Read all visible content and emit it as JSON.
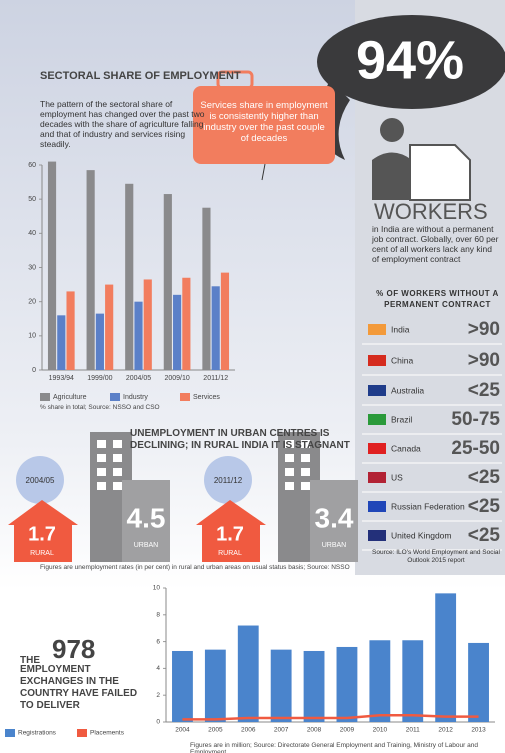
{
  "chart_data": [
    {
      "type": "bar",
      "title": "SECTORAL SHARE OF EMPLOYMENT",
      "description": "The pattern of the sectoral share of employment has changed over the past two decades with the share of agriculture falling and that of industry and services rising steadily.",
      "callout": "Services share in employment is consistently higher than industry over the past couple of decades",
      "categories": [
        "1993/94",
        "1999/00",
        "2004/05",
        "2009/10",
        "2011/12"
      ],
      "series": [
        {
          "name": "Agriculture",
          "type": "bar",
          "color": "#8a8a8c",
          "values": [
            61,
            58.5,
            54.5,
            51.5,
            47.5
          ]
        },
        {
          "name": "Industry",
          "type": "bar",
          "color": "#5b80c8",
          "values": [
            16,
            16.5,
            20,
            22,
            24.5
          ]
        },
        {
          "name": "Services",
          "type": "bar",
          "color": "#f27d5e",
          "values": [
            23,
            25,
            26.5,
            27,
            28.5
          ]
        }
      ],
      "ylim": [
        0,
        60
      ],
      "yticks": [
        0,
        10,
        20,
        30,
        40,
        50,
        60
      ],
      "grid": false,
      "legend": "bottom",
      "note": "% share in total; Source: NSSO and CSO"
    },
    {
      "type": "bar",
      "title_number": "978",
      "title_prefix": "THE",
      "title": "EMPLOYMENT EXCHANGES IN THE COUNTRY HAVE FAILED TO DELIVER",
      "categories": [
        "2004",
        "2005",
        "2006",
        "2007",
        "2008",
        "2009",
        "2010",
        "2011",
        "2012",
        "2013"
      ],
      "series": [
        {
          "name": "Registrations",
          "type": "bar",
          "color": "#4a84cc",
          "values": [
            5.3,
            5.4,
            7.2,
            5.4,
            5.3,
            5.6,
            6.1,
            6.1,
            9.6,
            5.9
          ]
        },
        {
          "name": "Placements",
          "type": "line",
          "color": "#f05a40",
          "values": [
            0.2,
            0.2,
            0.3,
            0.3,
            0.3,
            0.3,
            0.5,
            0.5,
            0.4,
            0.4
          ]
        }
      ],
      "ylim": [
        0,
        10
      ],
      "yticks": [
        0,
        2,
        4,
        6,
        8,
        10
      ],
      "grid": false,
      "legend": "bottom-left",
      "note": "Figures are in million; Source: Directorate General Employment and Training, Ministry of Labour and Employment"
    }
  ],
  "unemployment": {
    "title": "UNEMPLOYMENT IN URBAN CENTRES IS DECLINING; IN RURAL INDIA IT IS STAGNANT",
    "panels": [
      {
        "year": "2004/05",
        "rural": "1.7",
        "rural_label": "RURAL",
        "urban": "4.5",
        "urban_label": "URBAN"
      },
      {
        "year": "2011/12",
        "rural": "1.7",
        "rural_label": "RURAL",
        "urban": "3.4",
        "urban_label": "URBAN"
      }
    ],
    "note": "Figures are unemployment rates (in per cent) in rural and urban areas on usual status basis; Source: NSSO"
  },
  "workers": {
    "headline": "94%",
    "label": "WORKERS",
    "description": "in India are without a permanent job contract. Globally, over 60 per cent of all workers lack any kind of employment contract",
    "table_title": "% OF WORKERS WITHOUT A PERMANENT CONTRACT",
    "rows": [
      {
        "country": "India",
        "value": ">90"
      },
      {
        "country": "China",
        "value": ">90"
      },
      {
        "country": "Australia",
        "value": "<25"
      },
      {
        "country": "Brazil",
        "value": "50-75"
      },
      {
        "country": "Canada",
        "value": "25-50"
      },
      {
        "country": "US",
        "value": "<25"
      },
      {
        "country": "Russian Federation",
        "value": "<25"
      },
      {
        "country": "United Kingdom",
        "value": "<25"
      }
    ],
    "source": "Source: ILO's World Employment and Social Outlook 2015 report"
  }
}
